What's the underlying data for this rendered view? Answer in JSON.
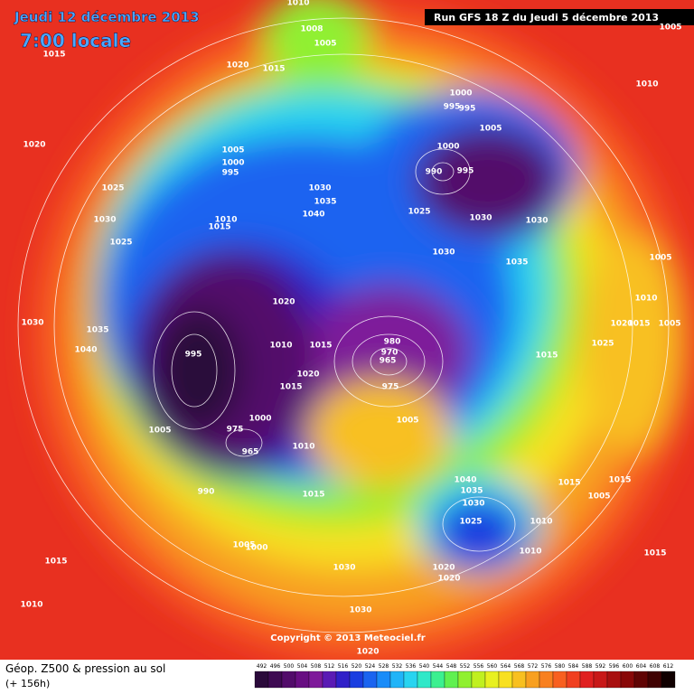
{
  "header": {
    "date": "Jeudi 12 décembre 2013",
    "time": "7:00 locale",
    "run": "Run GFS 18 Z du Jeudi 5 décembre 2013"
  },
  "copyright": "Copyright © 2013 Meteociel.fr",
  "footer": {
    "title": "Géop. Z500 & pression au sol",
    "lead": "(+ 156h)"
  },
  "colorbar": {
    "ticks": [
      492,
      496,
      500,
      504,
      508,
      512,
      516,
      520,
      524,
      528,
      532,
      536,
      540,
      544,
      548,
      552,
      556,
      560,
      564,
      568,
      572,
      576,
      580,
      584,
      588,
      592,
      596,
      600,
      604,
      608,
      612
    ],
    "colors": [
      "#2a0a3a",
      "#3e0a52",
      "#520c6a",
      "#680e82",
      "#7e1a9a",
      "#5a1ab4",
      "#3020c8",
      "#1a3ee0",
      "#1a64f0",
      "#1a8cf8",
      "#20b4f8",
      "#28d4f0",
      "#30e8c8",
      "#3cf090",
      "#60f050",
      "#90f030",
      "#c0f020",
      "#e8f020",
      "#f8e020",
      "#f8c020",
      "#f8a020",
      "#f88020",
      "#f86020",
      "#f04020",
      "#e02020",
      "#c81818",
      "#a81010",
      "#880808",
      "#600404",
      "#400202",
      "#100000"
    ]
  },
  "isobar_labels": [
    1010,
    1008,
    1005,
    1015,
    1020,
    1015,
    1010,
    1000,
    995,
    995,
    1005,
    1020,
    1005,
    1000,
    995,
    1000,
    990,
    995,
    1025,
    1030,
    1035,
    1040,
    1025,
    1030,
    1030,
    1010,
    1015,
    1030,
    1025,
    1030,
    1035,
    1005,
    1010,
    1020,
    1030,
    1035,
    1020,
    1015,
    1005,
    1010,
    1015,
    980,
    970,
    965,
    995,
    1040,
    1025,
    1015,
    1020,
    1015,
    975,
    1005,
    975,
    1000,
    965,
    1010,
    990,
    1005,
    1015,
    1040,
    1035,
    1030,
    1025,
    1010,
    1010,
    1015,
    1005,
    1015,
    1005,
    1000,
    1015,
    1030,
    1020,
    1020,
    1015,
    1010,
    1030,
    1020,
    1005
  ]
}
